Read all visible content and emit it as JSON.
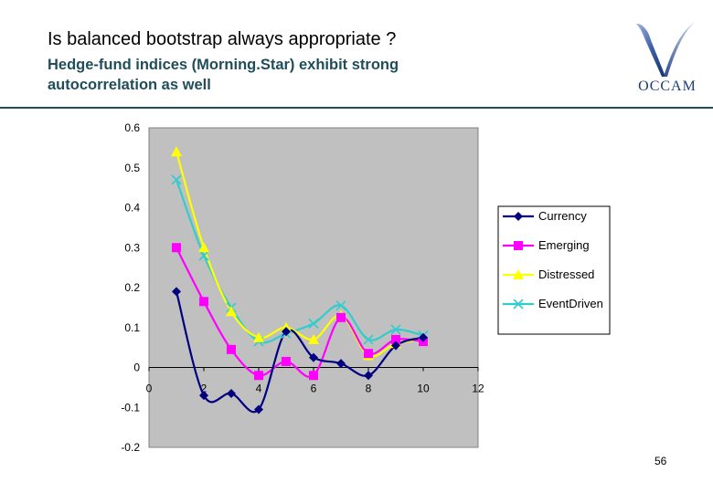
{
  "slide": {
    "title": "Is balanced bootstrap always appropriate ?",
    "subtitle_line1": "Hedge-fund indices (Morning.Star) exhibit strong",
    "subtitle_line2": "autocorrelation as well",
    "logo_text": "OCCAM",
    "page_number": "56"
  },
  "chart_data": {
    "type": "line",
    "title": "",
    "xlabel": "",
    "ylabel": "",
    "xlim": [
      0,
      12
    ],
    "ylim": [
      -0.2,
      0.6
    ],
    "x_ticks": [
      0,
      2,
      4,
      6,
      8,
      10,
      12
    ],
    "y_ticks": [
      -0.2,
      -0.1,
      0,
      0.1,
      0.2,
      0.3,
      0.4,
      0.5,
      0.6
    ],
    "x_tick_labels": [
      "0",
      "2",
      "4",
      "6",
      "8",
      "10",
      "12"
    ],
    "y_tick_labels": [
      "-0.2",
      "-0.1",
      "0",
      "0.1",
      "0.2",
      "0.3",
      "0.4",
      "0.5",
      "0.6"
    ],
    "grid": false,
    "smoothed": true,
    "plot_background": "#c0c0c0",
    "legend_position": "right",
    "x": [
      1,
      2,
      3,
      4,
      5,
      6,
      7,
      8,
      9,
      10
    ],
    "series": [
      {
        "name": "Currency",
        "color": "#000080",
        "marker": "diamond",
        "values": [
          0.19,
          -0.07,
          -0.065,
          -0.105,
          0.09,
          0.025,
          0.01,
          -0.02,
          0.055,
          0.075
        ]
      },
      {
        "name": "Emerging",
        "color": "#ff00ff",
        "marker": "square",
        "values": [
          0.3,
          0.165,
          0.045,
          -0.02,
          0.015,
          -0.02,
          0.125,
          0.035,
          0.07,
          0.065
        ]
      },
      {
        "name": "Distressed",
        "color": "#ffff00",
        "marker": "triangle",
        "values": [
          0.54,
          0.3,
          0.14,
          0.075,
          0.1,
          0.07,
          0.13,
          0.03,
          0.06,
          0.07
        ]
      },
      {
        "name": "EventDriven",
        "color": "#33cccc",
        "marker": "x",
        "values": [
          0.47,
          0.28,
          0.15,
          0.065,
          0.085,
          0.11,
          0.155,
          0.07,
          0.095,
          0.08
        ]
      }
    ]
  }
}
